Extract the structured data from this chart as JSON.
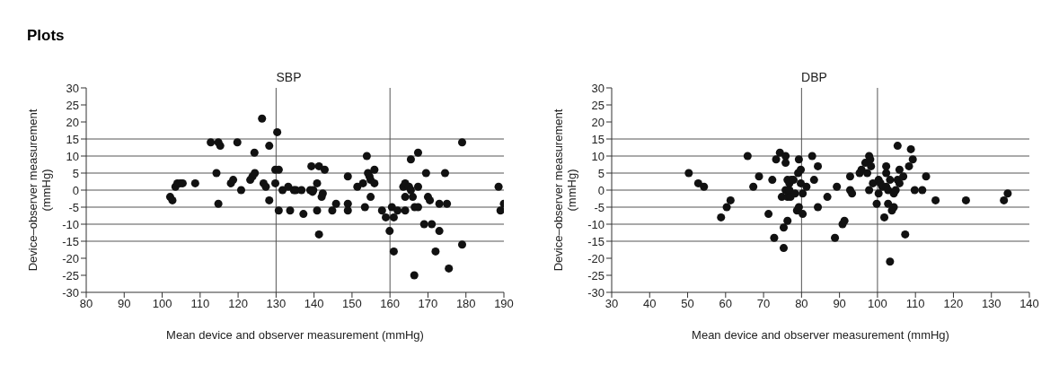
{
  "chart_data": [
    {
      "type": "scatter",
      "title": "SBP",
      "annotations": [
        "Plots"
      ],
      "xlabel": "Mean device and observer measurement (mmHg)",
      "ylabel": "Device–observer measurement (mmHg)",
      "xlim": [
        80,
        190
      ],
      "xticks": [
        80,
        90,
        100,
        110,
        120,
        130,
        140,
        150,
        160,
        170,
        180,
        190
      ],
      "ylim": [
        -30,
        30
      ],
      "yticks": [
        -30,
        -25,
        -20,
        -15,
        -10,
        -5,
        0,
        5,
        10,
        15,
        20,
        25,
        30
      ],
      "grid": false,
      "marker": "circle",
      "ref_lines": [
        {
          "axis": "y",
          "value": -15
        },
        {
          "axis": "y",
          "value": -10
        },
        {
          "axis": "y",
          "value": -5
        },
        {
          "axis": "y",
          "value": 0
        },
        {
          "axis": "y",
          "value": 5
        },
        {
          "axis": "y",
          "value": 10
        },
        {
          "axis": "y",
          "value": 15
        },
        {
          "axis": "x",
          "value": 130
        },
        {
          "axis": "x",
          "value": 160
        }
      ],
      "series": [
        {
          "color": "#111111",
          "x": [
            102.1,
            102.7,
            103.5,
            104,
            104.8,
            105.4,
            108.7,
            112.8,
            114.8,
            115.3,
            114.3,
            114.8,
            118.1,
            118.7,
            119.8,
            120.8,
            123.2,
            123.8,
            124.4,
            124.3,
            126.3,
            126.7,
            127.3,
            128.2,
            128.2,
            129.8,
            130.3,
            129.8,
            130.7,
            130.7,
            131.7,
            133.2,
            133.7,
            134.7,
            135.2,
            136.7,
            137.2,
            139.3,
            139,
            139.6,
            139.8,
            140.8,
            140.8,
            141.3,
            141.3,
            142,
            142.3,
            142.8,
            144.8,
            145.8,
            148.9,
            148.9,
            148.9,
            151.4,
            152.9,
            153.4,
            153.9,
            154.2,
            154.6,
            154.9,
            154.9,
            155.9,
            155.9,
            157.9,
            158.9,
            159.9,
            160.5,
            161,
            161,
            162,
            163.5,
            164,
            164,
            164,
            165,
            165.5,
            165.5,
            166,
            166.5,
            166.4,
            167.4,
            167.4,
            167.4,
            169.5,
            170,
            170.5,
            169,
            171,
            172,
            173,
            173,
            174.5,
            175,
            175.5,
            179,
            179,
            188.6,
            189.1,
            190
          ],
          "values": [
            -2,
            -3,
            1,
            2,
            2,
            2,
            2,
            14,
            14,
            13,
            5,
            -4,
            2,
            3,
            14,
            0,
            3,
            4,
            5,
            11,
            21,
            2,
            1,
            13,
            -3,
            2,
            17,
            6,
            6,
            -6,
            0,
            1,
            -6,
            0,
            0,
            0,
            -7,
            7,
            0,
            -0.5,
            0,
            2,
            -6,
            7,
            -13,
            -2,
            -1,
            6,
            -6,
            -4,
            4,
            -4,
            -6,
            1,
            2,
            -5,
            10,
            5,
            4,
            3,
            -2,
            6,
            2,
            -6,
            -8,
            -12,
            -5,
            -8,
            -18,
            -6,
            1,
            2,
            -2,
            -6,
            1,
            9,
            0,
            -2,
            -5,
            -25,
            11,
            1,
            -5,
            5,
            -2,
            -3,
            -10,
            -10,
            -18,
            -4,
            -12,
            5,
            -4,
            -23,
            14,
            -16,
            1,
            -6,
            -4
          ]
        }
      ]
    },
    {
      "type": "scatter",
      "title": "DBP",
      "xlabel": "Mean device and observer measurement (mmHg)",
      "ylabel": "Device–observer measurement (mmHg)",
      "xlim": [
        30,
        140
      ],
      "xticks": [
        30,
        40,
        50,
        60,
        70,
        80,
        90,
        100,
        110,
        120,
        130,
        140
      ],
      "ylim": [
        -30,
        30
      ],
      "yticks": [
        -30,
        -25,
        -20,
        -15,
        -10,
        -5,
        0,
        5,
        10,
        15,
        20,
        25,
        30
      ],
      "grid": false,
      "marker": "circle",
      "ref_lines": [
        {
          "axis": "y",
          "value": -15
        },
        {
          "axis": "y",
          "value": -10
        },
        {
          "axis": "y",
          "value": -5
        },
        {
          "axis": "y",
          "value": 0
        },
        {
          "axis": "y",
          "value": 5
        },
        {
          "axis": "y",
          "value": 10
        },
        {
          "axis": "y",
          "value": 15
        },
        {
          "axis": "x",
          "value": 80
        },
        {
          "axis": "x",
          "value": 100
        }
      ],
      "series": [
        {
          "color": "#111111",
          "x": [
            50.3,
            52.8,
            54.3,
            58.8,
            60.3,
            61.3,
            65.8,
            67.3,
            68.8,
            71.3,
            72.3,
            72.8,
            73.3,
            74.3,
            74.8,
            75.3,
            75.3,
            75.8,
            75.8,
            75.8,
            76.3,
            76.3,
            76.3,
            76.8,
            76.8,
            77.3,
            77.1,
            77.9,
            78.3,
            78.8,
            79.1,
            79.3,
            79.3,
            79.8,
            79.8,
            80.3,
            80.3,
            81.3,
            82.8,
            83.3,
            84.3,
            84.3,
            86.8,
            88.8,
            89.3,
            90.8,
            91.3,
            92.8,
            92.8,
            93.3,
            95.3,
            95.8,
            96.8,
            97.3,
            97.8,
            98.1,
            98.3,
            97.8,
            98.8,
            99.8,
            100.3,
            100.3,
            100.8,
            101.3,
            101.8,
            102.3,
            102.3,
            102.3,
            102.8,
            102.8,
            103.3,
            103.3,
            103.8,
            104.3,
            104.3,
            104.8,
            105.3,
            105.3,
            105.8,
            105.8,
            106.8,
            107.3,
            108.3,
            108.8,
            109.3,
            109.8,
            111.8,
            112.8,
            115.3,
            123.3,
            133.3,
            134.3
          ],
          "values": [
            5,
            2,
            1,
            -8,
            -5,
            -3,
            10,
            1,
            4,
            -7,
            3,
            -14,
            9,
            11,
            -2,
            -11,
            -17,
            10,
            8,
            0,
            3,
            -9,
            -2,
            0,
            2,
            3,
            -2,
            3,
            -1,
            -6,
            5,
            9,
            -5,
            6,
            2,
            -1,
            -7,
            1,
            10,
            3,
            7,
            -5,
            -2,
            -14,
            1,
            -10,
            -9,
            4,
            0,
            -1,
            5,
            6,
            8,
            5,
            10,
            9,
            7,
            0,
            2,
            -4,
            3,
            -1,
            2,
            1,
            -8,
            7,
            5,
            1,
            0,
            -4,
            3,
            -21,
            -6,
            -1,
            -5,
            0,
            13,
            3,
            2,
            6,
            4,
            -13,
            7,
            12,
            9,
            0,
            0,
            4,
            -3,
            -3,
            -3,
            -1
          ]
        }
      ]
    }
  ]
}
